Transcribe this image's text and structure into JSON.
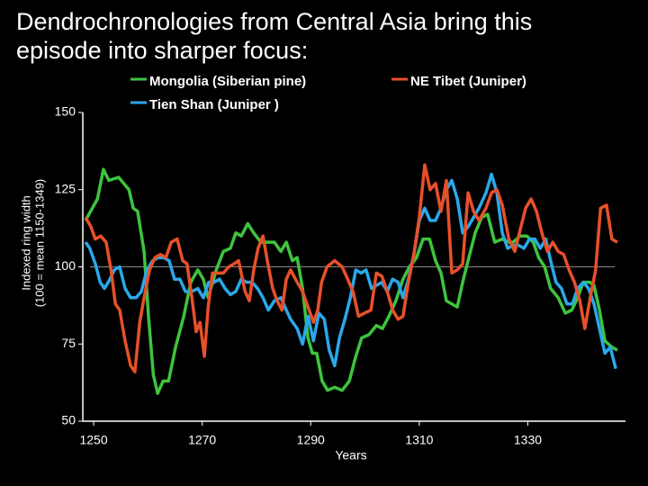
{
  "chart_data": {
    "type": "line",
    "title": [
      "Dendrochronologies from Central Asia bring this",
      "episode into sharper focus:"
    ],
    "x_label": "Years",
    "y_label": [
      "Indexed ring width",
      "(100 = mean 1150-1349)"
    ],
    "xlim": [
      1248,
      1348
    ],
    "xticks": [
      1250,
      1270,
      1290,
      1310,
      1330
    ],
    "ylim": [
      50,
      150
    ],
    "yticks": [
      50,
      75,
      100,
      125,
      150
    ],
    "reference_line": 100,
    "grid": false,
    "series": [
      {
        "name": "Mongolia (Siberian pine)",
        "color": "#3ec43e",
        "x": [
          1248.5,
          1250.7,
          1251.8,
          1252.8,
          1254.6,
          1256.5,
          1257.3,
          1258.1,
          1259.3,
          1260.1,
          1261,
          1261.8,
          1262.8,
          1263.8,
          1265.1,
          1266.6,
          1267.9,
          1269.2,
          1270.2,
          1271.1,
          1272.6,
          1273.9,
          1275.2,
          1276.2,
          1277.2,
          1278.4,
          1279.5,
          1280.8,
          1282.2,
          1283.3,
          1284.5,
          1285.5,
          1286.6,
          1287.5,
          1288.5,
          1289.5,
          1290.3,
          1291.1,
          1292.1,
          1293.1,
          1294.4,
          1295.8,
          1297.1,
          1298.3,
          1299.4,
          1300.7,
          1302.1,
          1303.2,
          1304.4,
          1305.7,
          1307,
          1308.2,
          1309.5,
          1310.7,
          1311.9,
          1313,
          1314,
          1315,
          1316,
          1317,
          1318,
          1319,
          1320.3,
          1321.5,
          1322.6,
          1323.9,
          1325.3,
          1326.5,
          1327.3,
          1328.6,
          1329.8,
          1331,
          1332,
          1333.1,
          1334.2,
          1335.6,
          1336.9,
          1338.1,
          1339.2,
          1340.2,
          1341.4,
          1342.2,
          1343.2,
          1344.2,
          1345.5,
          1346.5
        ],
        "values": [
          115,
          122,
          131.6,
          128,
          129,
          125,
          119,
          118,
          105,
          84,
          65,
          59,
          63,
          63,
          74,
          84,
          95,
          99,
          96,
          90,
          99,
          105,
          106,
          111,
          110,
          114,
          111,
          108,
          108,
          108,
          105,
          108,
          102,
          103,
          93,
          77,
          72,
          72,
          63,
          60,
          61,
          60,
          63,
          71,
          77,
          78,
          81,
          80,
          84,
          89,
          96,
          100,
          103,
          109,
          109,
          102,
          98,
          89,
          88,
          87,
          95,
          102,
          111,
          116,
          117,
          108,
          109,
          108,
          108,
          110,
          110,
          108,
          103,
          100,
          93,
          90,
          85,
          86,
          90,
          95,
          95,
          94,
          86,
          76,
          74,
          73
        ]
      },
      {
        "name": "Tien Shan (Juniper )",
        "color": "#2aa8ea",
        "x": [
          1248.5,
          1249.3,
          1250.3,
          1251.2,
          1252,
          1253,
          1253.8,
          1254.8,
          1255.8,
          1256.8,
          1257.8,
          1258.8,
          1259.8,
          1260.9,
          1261.9,
          1262.9,
          1263.9,
          1264.9,
          1265.9,
          1266.9,
          1268.1,
          1269.2,
          1270.2,
          1271.2,
          1272.2,
          1273.2,
          1274.2,
          1275.2,
          1276.2,
          1277.2,
          1278.2,
          1279.2,
          1280.2,
          1281.2,
          1282.2,
          1283.3,
          1284.5,
          1285.5,
          1286.3,
          1287.5,
          1288.5,
          1289.5,
          1290.5,
          1291.5,
          1292.5,
          1293.4,
          1294.4,
          1295.3,
          1296.3,
          1297.3,
          1298.3,
          1299.3,
          1300.2,
          1301.2,
          1302.1,
          1303.1,
          1304.1,
          1305.1,
          1306.1,
          1307,
          1308,
          1309,
          1310,
          1311,
          1312,
          1313,
          1314,
          1315,
          1316,
          1317,
          1318,
          1319,
          1320,
          1321,
          1322.3,
          1323.3,
          1324.3,
          1325.3,
          1326.3,
          1327.3,
          1328.3,
          1329.3,
          1330.3,
          1331.3,
          1332.3,
          1333.3,
          1334.2,
          1335.2,
          1336.2,
          1337.2,
          1338.2,
          1339.2,
          1340.2,
          1341.2,
          1342.2,
          1343.2,
          1344.2,
          1345.2,
          1346.2
        ],
        "values": [
          108,
          106,
          101,
          95,
          93,
          96,
          99,
          100,
          93,
          90,
          90,
          92,
          99,
          102,
          103,
          103,
          102,
          96,
          96,
          92,
          92,
          93,
          90,
          95,
          95,
          96,
          93,
          91,
          92,
          96,
          95,
          95,
          93,
          90,
          86,
          89,
          90,
          86,
          83,
          80,
          75,
          84,
          76,
          85,
          83,
          73,
          68,
          77,
          83,
          90,
          99,
          98,
          99,
          93,
          94,
          95,
          92,
          96,
          95,
          90,
          96,
          104,
          115,
          119,
          115,
          115,
          119,
          125,
          128,
          122,
          111,
          113,
          116,
          119,
          124,
          130,
          124,
          111,
          106,
          107,
          107,
          106,
          109,
          109,
          106,
          109,
          102,
          95,
          93,
          88,
          88,
          93,
          95,
          93,
          88,
          80,
          72,
          74,
          67
        ]
      },
      {
        "name": "NE Tibet (Juniper)",
        "color": "#e8502a",
        "x": [
          1248.5,
          1249.5,
          1250.3,
          1251.3,
          1252.3,
          1253.2,
          1254,
          1254.8,
          1255.8,
          1256.8,
          1257.6,
          1258.5,
          1259.3,
          1260.3,
          1261.3,
          1262.3,
          1263.3,
          1264.3,
          1265.4,
          1266.4,
          1267.2,
          1268.1,
          1268.9,
          1269.6,
          1270.4,
          1271.1,
          1271.9,
          1272.9,
          1273.9,
          1274.9,
          1275.9,
          1276.7,
          1277.9,
          1278.7,
          1279.5,
          1280.3,
          1281.2,
          1282,
          1283,
          1283.8,
          1284.7,
          1285.5,
          1286.3,
          1287.5,
          1288.5,
          1289.5,
          1290.5,
          1291.3,
          1292,
          1293,
          1294.4,
          1295.8,
          1296.8,
          1297.8,
          1298.8,
          1299.9,
          1301.1,
          1302.1,
          1303.1,
          1304.1,
          1305.1,
          1306.1,
          1307,
          1308,
          1309,
          1310,
          1311,
          1312,
          1313,
          1314,
          1315,
          1316,
          1317,
          1318,
          1319,
          1320,
          1321,
          1322.3,
          1323.3,
          1324.3,
          1325.3,
          1326.5,
          1327.6,
          1328.6,
          1329.6,
          1330.6,
          1331.6,
          1332.6,
          1333.6,
          1334.6,
          1335.6,
          1336.6,
          1337.6,
          1338.6,
          1339.6,
          1340.5,
          1341.5,
          1342.5,
          1343.4,
          1344.5,
          1345.5,
          1346.5
        ],
        "values": [
          116,
          113,
          109,
          110,
          108,
          99,
          88,
          86,
          76,
          68,
          66,
          82,
          90,
          99,
          103,
          104,
          103,
          108,
          109,
          102,
          101,
          90,
          79,
          82,
          71,
          87,
          98,
          98,
          98,
          100,
          101,
          102,
          92,
          89,
          99,
          106,
          110,
          102,
          93,
          89,
          86,
          96,
          99,
          95,
          92,
          87,
          82,
          86,
          95,
          100,
          102,
          100,
          96,
          92,
          84,
          85,
          86,
          98,
          97,
          92,
          86,
          83,
          84,
          95,
          104,
          116,
          133,
          125,
          127,
          118,
          128,
          98,
          99,
          101,
          124,
          118,
          115,
          119,
          124,
          125,
          120,
          109,
          105,
          112,
          119,
          122,
          118,
          111,
          105,
          108,
          105,
          104,
          99,
          95,
          89,
          80,
          90,
          99,
          119,
          120,
          109,
          108
        ]
      }
    ]
  }
}
